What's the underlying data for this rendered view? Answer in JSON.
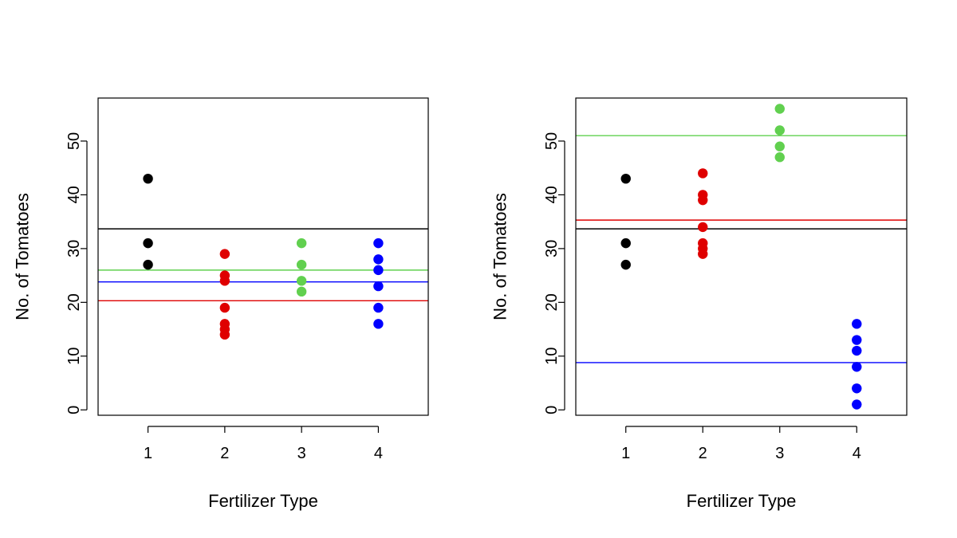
{
  "chart_data": [
    {
      "type": "scatter",
      "xlabel": "Fertilizer Type",
      "ylabel": "No. of Tomatoes",
      "xlim": [
        0.35,
        4.65
      ],
      "ylim": [
        -1,
        58
      ],
      "x_ticks": [
        "1",
        "2",
        "3",
        "4"
      ],
      "y_ticks": [
        "0",
        "10",
        "20",
        "30",
        "40",
        "50"
      ],
      "grid": false,
      "series": [
        {
          "x": 1,
          "values": [
            43,
            31,
            27
          ],
          "mean": 33.67,
          "color": "#000000"
        },
        {
          "x": 2,
          "values": [
            29,
            25,
            24,
            19,
            16,
            15,
            14
          ],
          "mean": 20.3,
          "color": "#df0000"
        },
        {
          "x": 3,
          "values": [
            31,
            27,
            24,
            22
          ],
          "mean": 26,
          "color": "#61d04f"
        },
        {
          "x": 4,
          "values": [
            31,
            28,
            26,
            23,
            19,
            16
          ],
          "mean": 23.8,
          "color": "#0000ff"
        }
      ]
    },
    {
      "type": "scatter",
      "xlabel": "Fertilizer Type",
      "ylabel": "No. of Tomatoes",
      "xlim": [
        0.35,
        4.65
      ],
      "ylim": [
        -1,
        58
      ],
      "x_ticks": [
        "1",
        "2",
        "3",
        "4"
      ],
      "y_ticks": [
        "0",
        "10",
        "20",
        "30",
        "40",
        "50"
      ],
      "grid": false,
      "series": [
        {
          "x": 1,
          "values": [
            43,
            31,
            27
          ],
          "mean": 33.67,
          "color": "#000000"
        },
        {
          "x": 2,
          "values": [
            44,
            40,
            39,
            34,
            31,
            30,
            29
          ],
          "mean": 35.3,
          "color": "#df0000"
        },
        {
          "x": 3,
          "values": [
            56,
            52,
            49,
            47
          ],
          "mean": 51,
          "color": "#61d04f"
        },
        {
          "x": 4,
          "values": [
            16,
            13,
            11,
            8,
            4,
            1
          ],
          "mean": 8.8,
          "color": "#0000ff"
        }
      ]
    }
  ]
}
